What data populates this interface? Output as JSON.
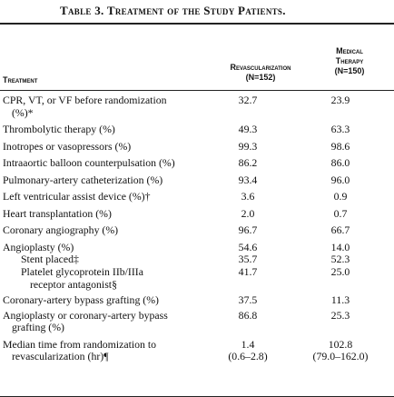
{
  "title": "Table 3. Treatment of the Study Patients.",
  "headers": {
    "treatment": "Treatment",
    "revasc_line1": "Revascularization",
    "revasc_line2": "(N=152)",
    "medical_line1": "Medical",
    "medical_line2": "Therapy",
    "medical_line3": "(N=150)"
  },
  "rows": [
    {
      "l1": "CPR, VT, or VF before randomization",
      "l2": "(%)*",
      "v1": "32.7",
      "v2": "23.9"
    },
    {
      "l1": "Thrombolytic therapy (%)",
      "v1": "49.3",
      "v2": "63.3"
    },
    {
      "l1": "Inotropes or vasopressors (%)",
      "v1": "99.3",
      "v2": "98.6"
    },
    {
      "l1": "Intraaortic balloon counterpulsation (%)",
      "v1": "86.2",
      "v2": "86.0"
    },
    {
      "l1": "Pulmonary-artery catheterization (%)",
      "v1": "93.4",
      "v2": "96.0"
    },
    {
      "l1": "Left ventricular assist device (%)†",
      "v1": "3.6",
      "v2": "0.9"
    },
    {
      "l1": "Heart transplantation (%)",
      "v1": "2.0",
      "v2": "0.7"
    },
    {
      "l1": "Coronary angiography (%)",
      "v1": "96.7",
      "v2": "66.7"
    },
    {
      "l1": "Angioplasty (%)",
      "v1": "54.6",
      "v2": "14.0"
    },
    {
      "l1": "Stent placed‡",
      "v1": "35.7",
      "v2": "52.3"
    },
    {
      "l1": "Platelet glycoprotein IIb/IIIa",
      "l2": "receptor antagonist§",
      "v1": "41.7",
      "v2": "25.0"
    },
    {
      "l1": "Coronary-artery bypass grafting (%)",
      "v1": "37.5",
      "v2": "11.3"
    },
    {
      "l1": "Angioplasty or coronary-artery bypass",
      "l2": "grafting (%)",
      "v1": "86.8",
      "v2": "25.3"
    },
    {
      "l1": "Median time from randomization to",
      "l2": "revascularization (hr)¶",
      "v1": "1.4",
      "v1b": "(0.6–2.8)",
      "v2": "102.8",
      "v2b": "(79.0–162.0)"
    }
  ]
}
